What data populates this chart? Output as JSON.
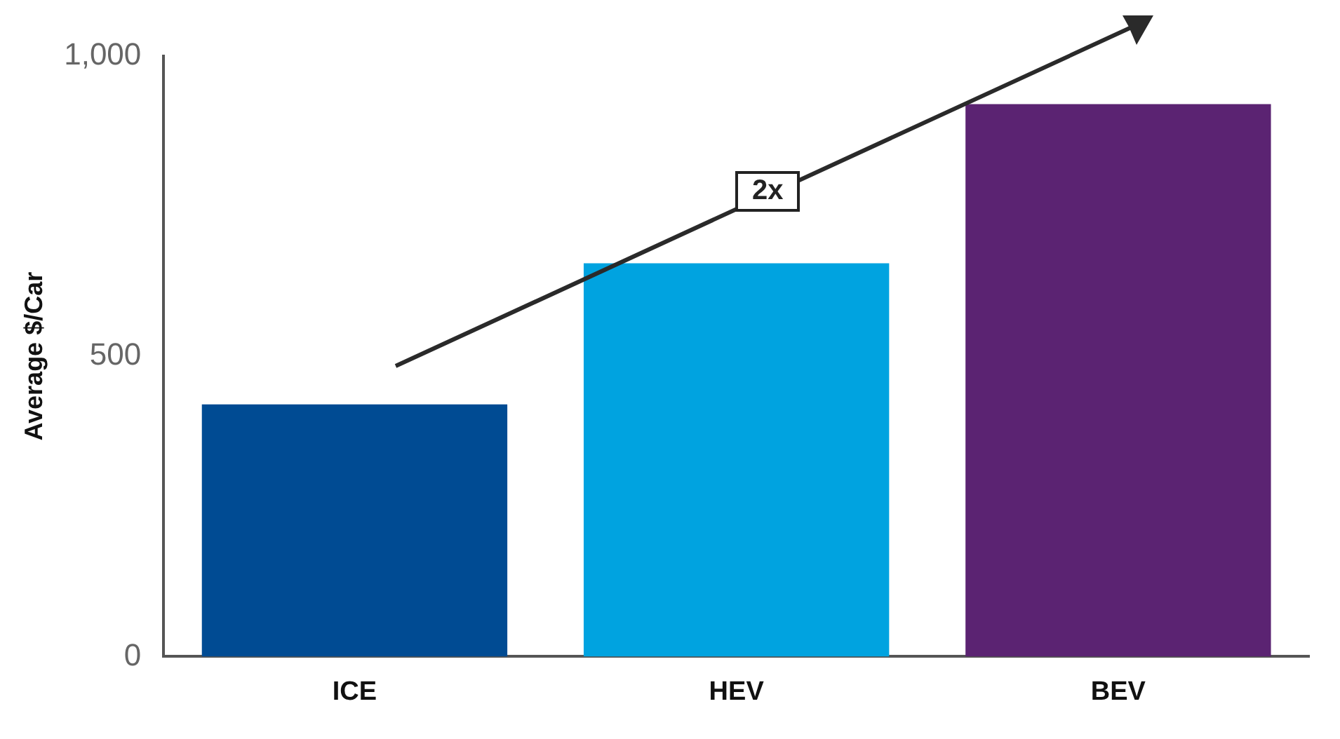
{
  "chart_data": {
    "type": "bar",
    "ylabel": "Average $/Car",
    "categories": [
      "ICE",
      "HEV",
      "BEV"
    ],
    "values": [
      420,
      655,
      920
    ],
    "colors": [
      "#004b93",
      "#00a3e0",
      "#5b2372"
    ],
    "ylim": [
      0,
      1000
    ],
    "yticks": [
      0,
      500,
      {
        "value": 1000,
        "label": "1,000"
      }
    ],
    "grid": false,
    "legend": false,
    "annotations": [
      "2x"
    ]
  }
}
